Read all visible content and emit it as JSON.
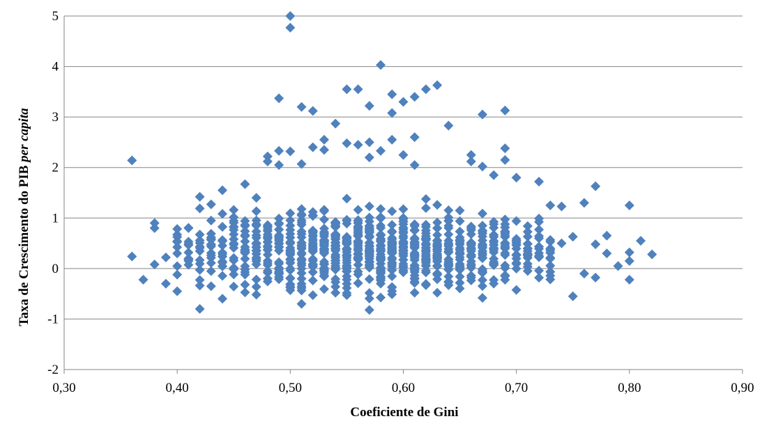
{
  "chart_data": {
    "type": "scatter",
    "title": "",
    "xlabel": "Coeficiente de Gini",
    "ylabel_main": "Taxa de Crescimento do PIB ",
    "ylabel_italic": "per capita",
    "xlim": [
      0.3,
      0.9
    ],
    "ylim": [
      -2,
      5
    ],
    "x_ticks": [
      "0,30",
      "0,40",
      "0,50",
      "0,60",
      "0,70",
      "0,80",
      "0,90"
    ],
    "y_ticks": [
      "-2",
      "-1",
      "0",
      "1",
      "2",
      "3",
      "4",
      "5"
    ],
    "grid": "horizontal",
    "legend": "none",
    "marker": "diamond",
    "marker_color": "#4F81BD",
    "outliers": [
      [
        0.36,
        2.14
      ],
      [
        0.36,
        0.24
      ],
      [
        0.37,
        -0.22
      ],
      [
        0.38,
        0.9
      ],
      [
        0.38,
        0.8
      ],
      [
        0.38,
        0.08
      ],
      [
        0.39,
        0.22
      ],
      [
        0.39,
        -0.3
      ],
      [
        0.4,
        -0.45
      ],
      [
        0.4,
        -0.12
      ],
      [
        0.41,
        0.8
      ],
      [
        0.42,
        1.42
      ],
      [
        0.42,
        -0.8
      ],
      [
        0.43,
        0.95
      ],
      [
        0.43,
        -0.35
      ],
      [
        0.44,
        1.55
      ],
      [
        0.46,
        1.67
      ],
      [
        0.47,
        1.4
      ],
      [
        0.48,
        2.22
      ],
      [
        0.48,
        2.12
      ],
      [
        0.49,
        3.37
      ],
      [
        0.49,
        2.33
      ],
      [
        0.49,
        2.05
      ],
      [
        0.5,
        5.0
      ],
      [
        0.5,
        4.77
      ],
      [
        0.5,
        2.32
      ],
      [
        0.51,
        3.2
      ],
      [
        0.51,
        2.07
      ],
      [
        0.51,
        -0.7
      ],
      [
        0.52,
        3.12
      ],
      [
        0.52,
        2.4
      ],
      [
        0.53,
        2.55
      ],
      [
        0.53,
        2.35
      ],
      [
        0.54,
        2.87
      ],
      [
        0.55,
        3.55
      ],
      [
        0.55,
        2.48
      ],
      [
        0.56,
        3.55
      ],
      [
        0.56,
        2.45
      ],
      [
        0.57,
        3.22
      ],
      [
        0.57,
        2.5
      ],
      [
        0.57,
        2.2
      ],
      [
        0.57,
        -0.82
      ],
      [
        0.58,
        4.03
      ],
      [
        0.58,
        2.33
      ],
      [
        0.59,
        3.45
      ],
      [
        0.59,
        3.08
      ],
      [
        0.59,
        2.55
      ],
      [
        0.6,
        3.3
      ],
      [
        0.6,
        2.25
      ],
      [
        0.61,
        3.4
      ],
      [
        0.61,
        2.6
      ],
      [
        0.61,
        2.05
      ],
      [
        0.62,
        3.55
      ],
      [
        0.63,
        3.63
      ],
      [
        0.64,
        2.83
      ],
      [
        0.66,
        2.25
      ],
      [
        0.66,
        2.12
      ],
      [
        0.67,
        3.05
      ],
      [
        0.67,
        2.02
      ],
      [
        0.68,
        1.85
      ],
      [
        0.69,
        3.13
      ],
      [
        0.69,
        2.38
      ],
      [
        0.69,
        2.15
      ],
      [
        0.7,
        1.8
      ],
      [
        0.72,
        1.72
      ],
      [
        0.73,
        1.25
      ],
      [
        0.74,
        1.23
      ],
      [
        0.74,
        0.5
      ],
      [
        0.75,
        0.63
      ],
      [
        0.75,
        -0.55
      ],
      [
        0.76,
        1.3
      ],
      [
        0.76,
        -0.1
      ],
      [
        0.77,
        1.63
      ],
      [
        0.77,
        0.48
      ],
      [
        0.77,
        -0.18
      ],
      [
        0.78,
        0.65
      ],
      [
        0.78,
        0.3
      ],
      [
        0.79,
        0.05
      ],
      [
        0.8,
        1.25
      ],
      [
        0.8,
        0.32
      ],
      [
        0.8,
        0.15
      ],
      [
        0.8,
        -0.22
      ],
      [
        0.81,
        0.55
      ],
      [
        0.82,
        0.28
      ]
    ],
    "cloud": {
      "x_range": [
        0.4,
        0.73
      ],
      "x_center": 0.575,
      "y_center": 0.35,
      "y_spread": 0.38,
      "y_min": -0.6,
      "y_max": 1.9,
      "x_step": 0.01,
      "seed": 7
    }
  }
}
